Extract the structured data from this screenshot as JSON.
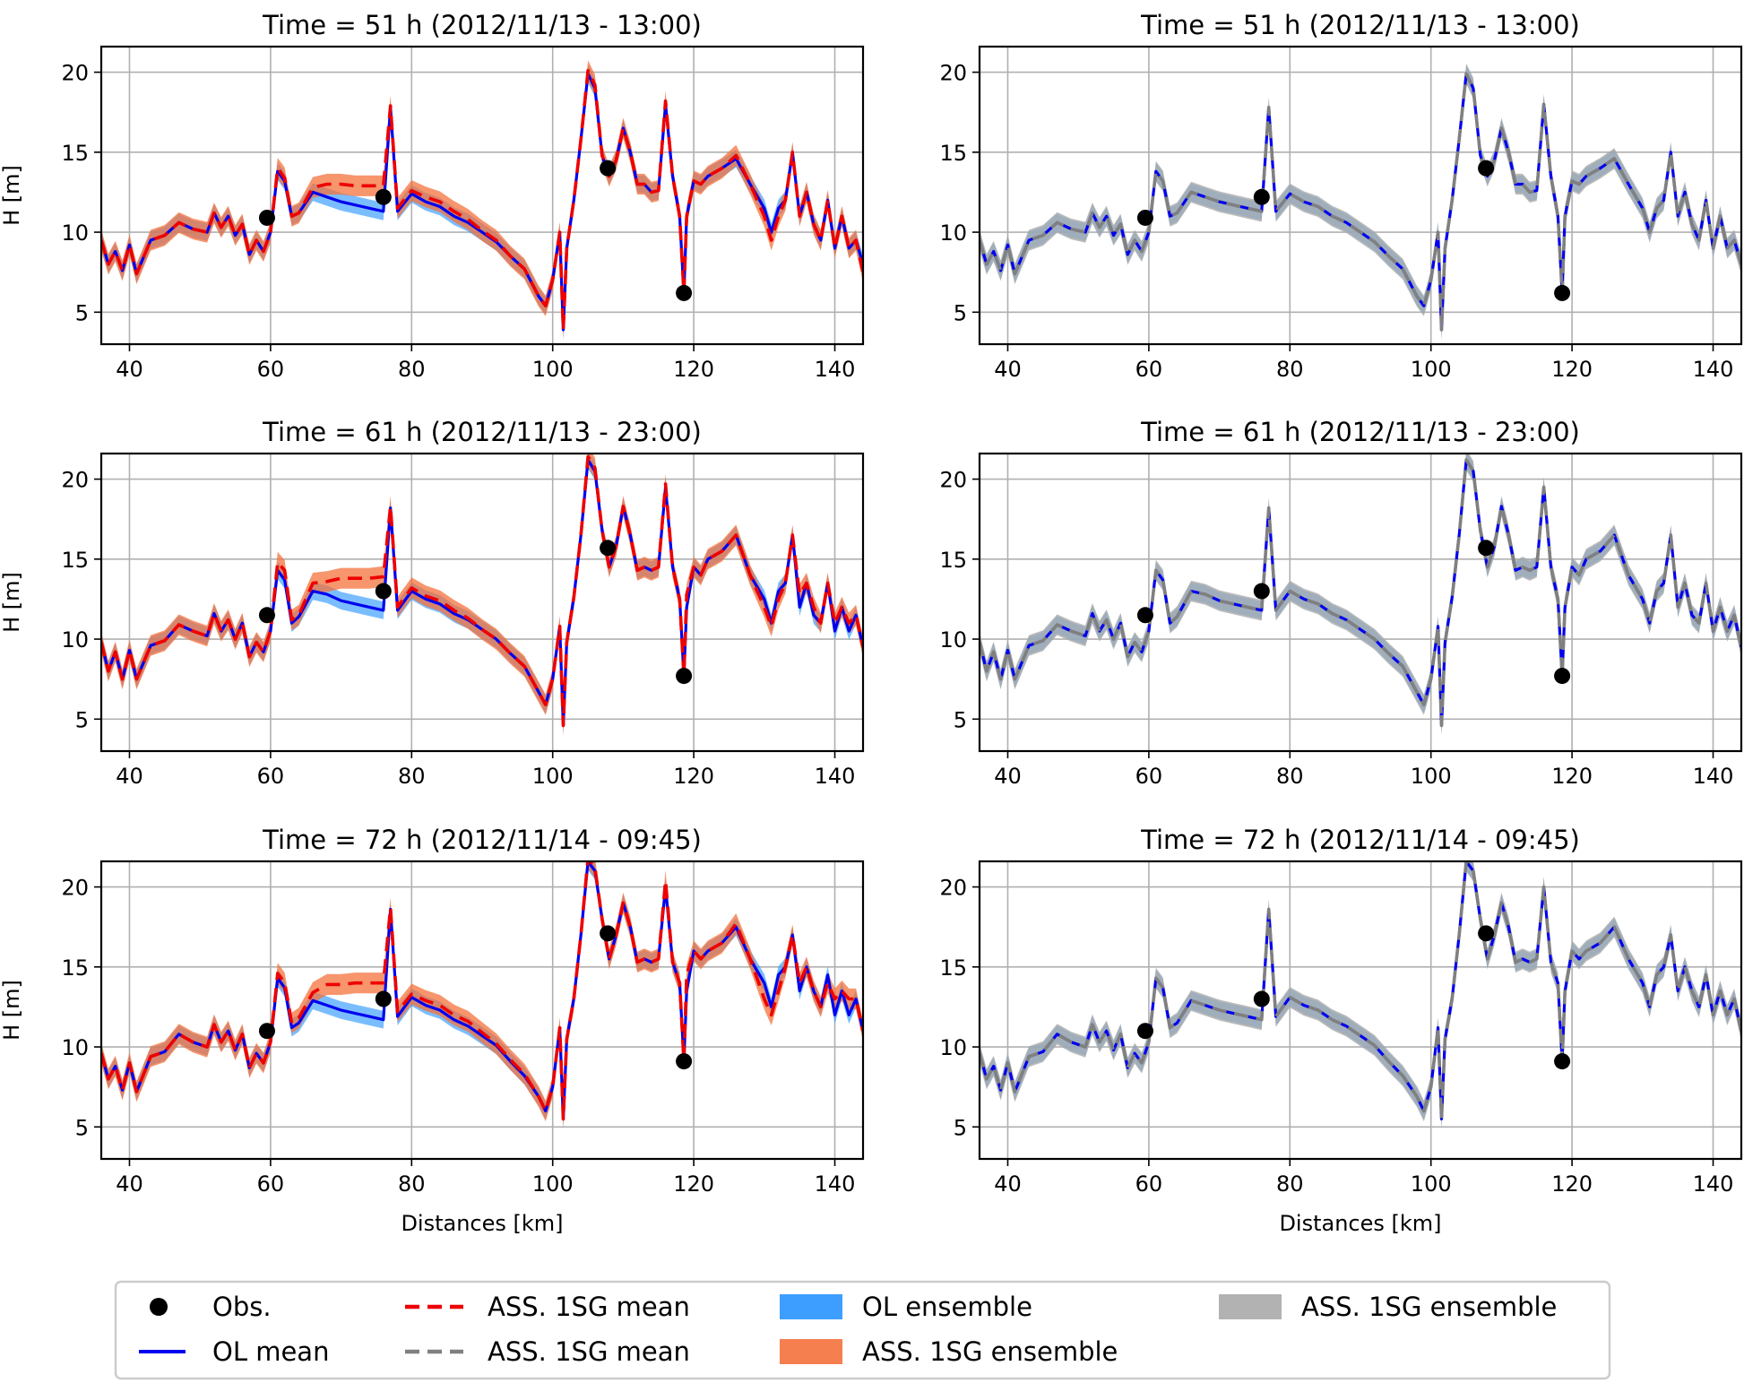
{
  "colors": {
    "obs": "#000000",
    "ol_mean": "#0000ee",
    "ol_ensemble": "#3399ff",
    "ass_left_mean": "#ee0000",
    "ass_left_ensemble": "#f4713c",
    "ass_right_mean": "#808080",
    "ass_right_ensemble": "#aaaaaa",
    "grid": "#b0b0b0"
  },
  "legend": {
    "items": [
      {
        "label": "Obs.",
        "kind": "obs"
      },
      {
        "label": "OL mean",
        "kind": "ol_mean"
      },
      {
        "label": "ASS. 1SG mean",
        "kind": "ass_left_mean"
      },
      {
        "label": "ASS. 1SG mean",
        "kind": "ass_right_mean"
      },
      {
        "label": "OL ensemble",
        "kind": "ol_ensemble"
      },
      {
        "label": "ASS. 1SG ensemble",
        "kind": "ass_left_ensemble"
      },
      {
        "label": "ASS. 1SG ensemble",
        "kind": "ass_right_ensemble"
      }
    ]
  },
  "chart_data": [
    {
      "type": "line",
      "title": "Time = 51 h (2012/11/13 - 13:00)",
      "ylabel": "H [m]",
      "xlabel": "",
      "xlim": [
        36,
        144
      ],
      "ylim": [
        3,
        21.6
      ],
      "xticks": [
        40,
        60,
        80,
        100,
        120,
        140
      ],
      "yticks": [
        5,
        10,
        15,
        20
      ],
      "grid": true,
      "ass_variant": "red",
      "time_index": 0,
      "obs": [
        [
          59.5,
          10.9
        ],
        [
          76,
          12.2
        ],
        [
          107.8,
          14.0
        ],
        [
          118.6,
          6.2
        ]
      ]
    },
    {
      "type": "line",
      "title": "Time = 51 h (2012/11/13 - 13:00)",
      "ylabel": "",
      "xlabel": "",
      "xlim": [
        36,
        144
      ],
      "ylim": [
        3,
        21.6
      ],
      "xticks": [
        40,
        60,
        80,
        100,
        120,
        140
      ],
      "yticks": [
        5,
        10,
        15,
        20
      ],
      "grid": true,
      "ass_variant": "gray",
      "time_index": 0,
      "obs": [
        [
          59.5,
          10.9
        ],
        [
          76,
          12.2
        ],
        [
          107.8,
          14.0
        ],
        [
          118.6,
          6.2
        ]
      ]
    },
    {
      "type": "line",
      "title": "Time = 61 h (2012/11/13 - 23:00)",
      "ylabel": "H [m]",
      "xlabel": "",
      "xlim": [
        36,
        144
      ],
      "ylim": [
        3,
        21.6
      ],
      "xticks": [
        40,
        60,
        80,
        100,
        120,
        140
      ],
      "yticks": [
        5,
        10,
        15,
        20
      ],
      "grid": true,
      "ass_variant": "red",
      "time_index": 1,
      "obs": [
        [
          59.5,
          11.5
        ],
        [
          76,
          13.0
        ],
        [
          107.8,
          15.7
        ],
        [
          118.6,
          7.7
        ]
      ]
    },
    {
      "type": "line",
      "title": "Time = 61 h (2012/11/13 - 23:00)",
      "ylabel": "",
      "xlabel": "",
      "xlim": [
        36,
        144
      ],
      "ylim": [
        3,
        21.6
      ],
      "xticks": [
        40,
        60,
        80,
        100,
        120,
        140
      ],
      "yticks": [
        5,
        10,
        15,
        20
      ],
      "grid": true,
      "ass_variant": "gray",
      "time_index": 1,
      "obs": [
        [
          59.5,
          11.5
        ],
        [
          76,
          13.0
        ],
        [
          107.8,
          15.7
        ],
        [
          118.6,
          7.7
        ]
      ]
    },
    {
      "type": "line",
      "title": "Time = 72 h (2012/11/14 - 09:45)",
      "ylabel": "H [m]",
      "xlabel": "Distances [km]",
      "xlim": [
        36,
        144
      ],
      "ylim": [
        3,
        21.6
      ],
      "xticks": [
        40,
        60,
        80,
        100,
        120,
        140
      ],
      "yticks": [
        5,
        10,
        15,
        20
      ],
      "grid": true,
      "ass_variant": "red",
      "time_index": 2,
      "obs": [
        [
          59.5,
          11.0
        ],
        [
          76,
          13.0
        ],
        [
          107.8,
          17.1
        ],
        [
          118.6,
          9.1
        ]
      ]
    },
    {
      "type": "line",
      "title": "Time = 72 h (2012/11/14 - 09:45)",
      "ylabel": "",
      "xlabel": "Distances [km]",
      "xlim": [
        36,
        144
      ],
      "ylim": [
        3,
        21.6
      ],
      "xticks": [
        40,
        60,
        80,
        100,
        120,
        140
      ],
      "yticks": [
        5,
        10,
        15,
        20
      ],
      "grid": true,
      "ass_variant": "gray",
      "time_index": 2,
      "obs": [
        [
          59.5,
          11.0
        ],
        [
          76,
          13.0
        ],
        [
          107.8,
          17.1
        ],
        [
          118.6,
          9.1
        ]
      ]
    }
  ],
  "profiles": {
    "x": [
      36,
      37,
      38,
      39,
      40,
      41,
      43,
      45,
      47,
      49,
      51,
      52,
      53,
      54,
      55,
      56,
      57,
      58,
      59,
      60,
      61,
      62,
      63,
      64,
      66,
      68,
      70,
      72,
      74,
      76,
      77,
      78,
      80,
      82,
      84,
      86,
      88,
      90,
      92,
      94,
      96,
      98,
      99,
      100,
      101,
      101.5,
      102,
      103,
      104,
      105,
      106,
      107,
      108,
      109,
      110,
      111,
      112,
      113,
      114,
      115,
      116,
      117,
      118,
      118.6,
      119,
      120,
      121,
      122,
      124,
      126,
      128,
      130,
      131,
      132,
      133,
      134,
      135,
      136,
      137,
      138,
      139,
      140,
      141,
      142,
      143,
      144
    ],
    "ol_mean": [
      [
        9.5,
        8.0,
        8.8,
        7.6,
        9.2,
        7.4,
        9.5,
        9.8,
        10.6,
        10.2,
        10.0,
        11.2,
        10.3,
        11.0,
        9.8,
        10.5,
        8.6,
        9.5,
        8.8,
        10.0,
        13.8,
        13.2,
        11.0,
        11.2,
        12.5,
        12.2,
        11.9,
        11.7,
        11.5,
        11.3,
        17.8,
        11.3,
        12.4,
        11.9,
        11.6,
        11.0,
        10.6,
        10.0,
        9.4,
        8.5,
        7.7,
        6.0,
        5.4,
        7.0,
        10.0,
        3.9,
        9.0,
        12.0,
        15.8,
        19.9,
        19.0,
        14.8,
        13.5,
        14.5,
        16.5,
        15.0,
        13.0,
        13.0,
        12.5,
        12.6,
        18.0,
        13.5,
        11.0,
        6.2,
        11.0,
        13.2,
        13.0,
        13.5,
        14.0,
        14.6,
        13.0,
        11.5,
        10.0,
        11.5,
        12.0,
        15.0,
        11.0,
        12.5,
        10.5,
        9.5,
        12.0,
        9.0,
        11.0,
        9.0,
        9.5,
        8.0
      ],
      [
        9.8,
        8.0,
        9.2,
        7.5,
        9.3,
        7.5,
        9.6,
        9.9,
        10.9,
        10.5,
        10.2,
        11.6,
        10.5,
        11.2,
        10.0,
        11.0,
        8.9,
        9.8,
        9.2,
        10.5,
        14.3,
        13.7,
        11.0,
        11.4,
        13.0,
        12.8,
        12.4,
        12.2,
        12.0,
        11.8,
        18.2,
        11.8,
        13.0,
        12.5,
        12.2,
        11.6,
        11.2,
        10.6,
        10.0,
        9.1,
        8.3,
        6.7,
        5.9,
        7.5,
        10.8,
        4.6,
        9.8,
        12.6,
        16.5,
        21.2,
        20.5,
        16.8,
        14.5,
        15.8,
        18.3,
        16.5,
        14.3,
        14.5,
        14.3,
        14.5,
        19.5,
        14.5,
        12.5,
        7.7,
        12.0,
        14.5,
        14.0,
        15.0,
        15.5,
        16.5,
        14.0,
        12.5,
        11.0,
        13.0,
        13.5,
        16.5,
        12.0,
        13.5,
        11.5,
        11.0,
        13.5,
        10.5,
        12.0,
        10.5,
        11.5,
        9.5
      ],
      [
        9.6,
        8.0,
        8.8,
        7.3,
        9.0,
        7.2,
        9.4,
        9.7,
        10.8,
        10.3,
        10.0,
        11.4,
        10.3,
        11.0,
        9.8,
        10.8,
        8.7,
        9.6,
        9.0,
        10.3,
        14.3,
        13.7,
        11.2,
        11.5,
        12.9,
        12.6,
        12.3,
        12.1,
        11.9,
        11.7,
        18.6,
        11.9,
        13.1,
        12.6,
        12.3,
        11.7,
        11.3,
        10.7,
        10.1,
        9.1,
        8.2,
        6.9,
        6.0,
        7.5,
        11.2,
        5.5,
        10.5,
        13.0,
        17.0,
        21.6,
        21.0,
        18.0,
        15.5,
        17.0,
        19.0,
        17.5,
        15.3,
        15.5,
        15.3,
        15.5,
        20.0,
        15.3,
        14.0,
        9.1,
        13.5,
        16.0,
        15.5,
        16.0,
        16.5,
        17.5,
        15.5,
        14.0,
        12.5,
        14.5,
        15.0,
        17.0,
        13.5,
        15.0,
        13.5,
        12.5,
        14.5,
        12.0,
        13.5,
        12.0,
        13.0,
        11.0
      ]
    ],
    "ass_red_mean": [
      [
        9.5,
        8.0,
        8.8,
        7.6,
        9.2,
        7.4,
        9.5,
        9.8,
        10.6,
        10.2,
        10.0,
        11.2,
        10.3,
        11.0,
        9.8,
        10.5,
        8.6,
        9.5,
        8.8,
        10.0,
        14.0,
        13.4,
        11.0,
        11.2,
        12.8,
        13.0,
        13.0,
        12.9,
        12.9,
        12.9,
        17.9,
        11.5,
        12.6,
        12.2,
        11.9,
        11.3,
        10.8,
        10.1,
        9.5,
        8.5,
        7.7,
        6.0,
        5.4,
        7.0,
        10.0,
        3.9,
        9.0,
        12.0,
        15.8,
        20.1,
        19.2,
        14.8,
        13.5,
        14.5,
        16.5,
        15.0,
        13.0,
        13.0,
        12.5,
        12.6,
        18.2,
        13.5,
        11.0,
        6.2,
        11.0,
        13.2,
        13.0,
        13.5,
        14.0,
        14.8,
        13.0,
        11.0,
        9.5,
        11.0,
        12.0,
        15.0,
        11.0,
        12.5,
        10.5,
        9.5,
        12.0,
        9.0,
        11.0,
        9.0,
        9.5,
        7.5
      ],
      [
        9.8,
        8.0,
        9.2,
        7.5,
        9.3,
        7.5,
        9.6,
        9.9,
        10.9,
        10.5,
        10.2,
        11.6,
        10.5,
        11.2,
        10.0,
        11.0,
        8.9,
        9.8,
        9.2,
        10.5,
        14.8,
        14.3,
        11.2,
        11.5,
        13.5,
        13.6,
        13.8,
        13.8,
        13.8,
        13.9,
        18.3,
        12.0,
        13.2,
        12.7,
        12.4,
        11.8,
        11.3,
        10.6,
        10.0,
        9.1,
        8.3,
        6.7,
        5.9,
        7.5,
        10.8,
        4.6,
        9.8,
        12.6,
        16.5,
        21.4,
        20.7,
        16.8,
        14.5,
        15.8,
        18.3,
        16.5,
        14.3,
        14.5,
        14.3,
        14.5,
        19.7,
        14.5,
        12.5,
        7.7,
        12.8,
        14.5,
        14.0,
        15.0,
        15.5,
        16.5,
        14.0,
        12.0,
        10.8,
        12.5,
        13.5,
        16.5,
        12.8,
        13.5,
        12.0,
        11.0,
        13.5,
        11.0,
        12.0,
        11.0,
        11.5,
        9.5
      ],
      [
        9.6,
        8.0,
        8.8,
        7.3,
        9.0,
        7.2,
        9.4,
        9.7,
        10.8,
        10.3,
        10.0,
        11.4,
        10.3,
        11.0,
        9.8,
        10.8,
        8.7,
        9.6,
        9.0,
        10.3,
        14.6,
        14.0,
        11.5,
        11.8,
        13.4,
        13.9,
        13.9,
        14.0,
        14.0,
        14.0,
        18.7,
        12.2,
        13.3,
        12.9,
        12.6,
        12.0,
        11.6,
        10.9,
        10.2,
        9.2,
        8.3,
        6.9,
        6.0,
        7.5,
        11.2,
        5.5,
        10.5,
        13.0,
        17.0,
        21.8,
        21.2,
        18.0,
        15.5,
        17.0,
        19.0,
        17.5,
        15.3,
        15.5,
        15.3,
        15.5,
        20.4,
        15.3,
        14.0,
        9.1,
        14.5,
        16.0,
        15.5,
        16.0,
        16.5,
        17.7,
        15.5,
        13.0,
        12.0,
        13.5,
        15.0,
        17.0,
        14.0,
        15.0,
        13.5,
        12.5,
        14.0,
        13.0,
        13.5,
        13.0,
        13.0,
        11.0
      ]
    ],
    "ass_gray_mean": [
      [
        9.5,
        8.0,
        8.8,
        7.6,
        9.2,
        7.4,
        9.5,
        9.8,
        10.6,
        10.2,
        10.0,
        11.2,
        10.3,
        11.0,
        9.8,
        10.5,
        8.6,
        9.5,
        8.8,
        10.0,
        13.8,
        13.2,
        11.0,
        11.2,
        12.5,
        12.2,
        11.9,
        11.7,
        11.5,
        11.3,
        17.8,
        11.3,
        12.4,
        11.9,
        11.6,
        11.0,
        10.6,
        10.0,
        9.4,
        8.5,
        7.7,
        6.0,
        5.4,
        7.0,
        10.0,
        3.9,
        9.0,
        12.0,
        15.8,
        19.9,
        19.0,
        14.8,
        13.5,
        14.5,
        16.5,
        15.0,
        13.0,
        13.0,
        12.5,
        12.6,
        18.0,
        13.5,
        11.0,
        6.2,
        11.0,
        13.2,
        13.0,
        13.5,
        14.0,
        14.6,
        13.0,
        11.5,
        10.0,
        11.5,
        12.0,
        15.0,
        11.0,
        12.5,
        10.5,
        9.5,
        12.0,
        9.0,
        11.0,
        9.0,
        9.5,
        8.0
      ],
      [
        9.8,
        8.0,
        9.2,
        7.5,
        9.3,
        7.5,
        9.6,
        9.9,
        10.9,
        10.5,
        10.2,
        11.6,
        10.5,
        11.2,
        10.0,
        11.0,
        8.9,
        9.8,
        9.2,
        10.5,
        14.3,
        13.7,
        11.0,
        11.4,
        13.0,
        12.8,
        12.4,
        12.2,
        12.0,
        11.8,
        18.2,
        11.8,
        13.0,
        12.5,
        12.2,
        11.6,
        11.2,
        10.6,
        10.0,
        9.1,
        8.3,
        6.7,
        5.9,
        7.5,
        10.8,
        4.6,
        9.8,
        12.6,
        16.5,
        21.2,
        20.5,
        16.8,
        14.5,
        15.8,
        18.3,
        16.5,
        14.3,
        14.5,
        14.3,
        14.5,
        19.5,
        14.5,
        12.5,
        7.7,
        12.0,
        14.5,
        14.0,
        15.0,
        15.5,
        16.5,
        14.0,
        12.5,
        11.0,
        13.0,
        13.5,
        16.5,
        12.0,
        13.5,
        11.5,
        11.0,
        13.5,
        10.5,
        12.0,
        10.5,
        11.5,
        9.5
      ],
      [
        9.6,
        8.0,
        8.8,
        7.3,
        9.0,
        7.2,
        9.4,
        9.7,
        10.8,
        10.3,
        10.0,
        11.4,
        10.3,
        11.0,
        9.8,
        10.8,
        8.7,
        9.6,
        9.0,
        10.3,
        14.3,
        13.7,
        11.2,
        11.5,
        12.9,
        12.6,
        12.3,
        12.1,
        11.9,
        11.7,
        18.6,
        11.9,
        13.1,
        12.6,
        12.3,
        11.7,
        11.3,
        10.7,
        10.1,
        9.1,
        8.2,
        6.9,
        6.0,
        7.5,
        11.2,
        5.5,
        10.5,
        13.0,
        17.0,
        21.6,
        21.0,
        18.0,
        15.5,
        17.0,
        19.0,
        17.5,
        15.3,
        15.5,
        15.3,
        15.5,
        20.0,
        15.3,
        14.0,
        9.1,
        13.5,
        16.0,
        15.5,
        16.0,
        16.5,
        17.5,
        15.5,
        14.0,
        12.5,
        14.5,
        15.0,
        17.0,
        13.5,
        15.0,
        13.5,
        12.5,
        14.5,
        12.0,
        13.5,
        12.0,
        13.0,
        11.0
      ]
    ],
    "ol_spread": 0.55,
    "ass_spread": 0.65
  }
}
